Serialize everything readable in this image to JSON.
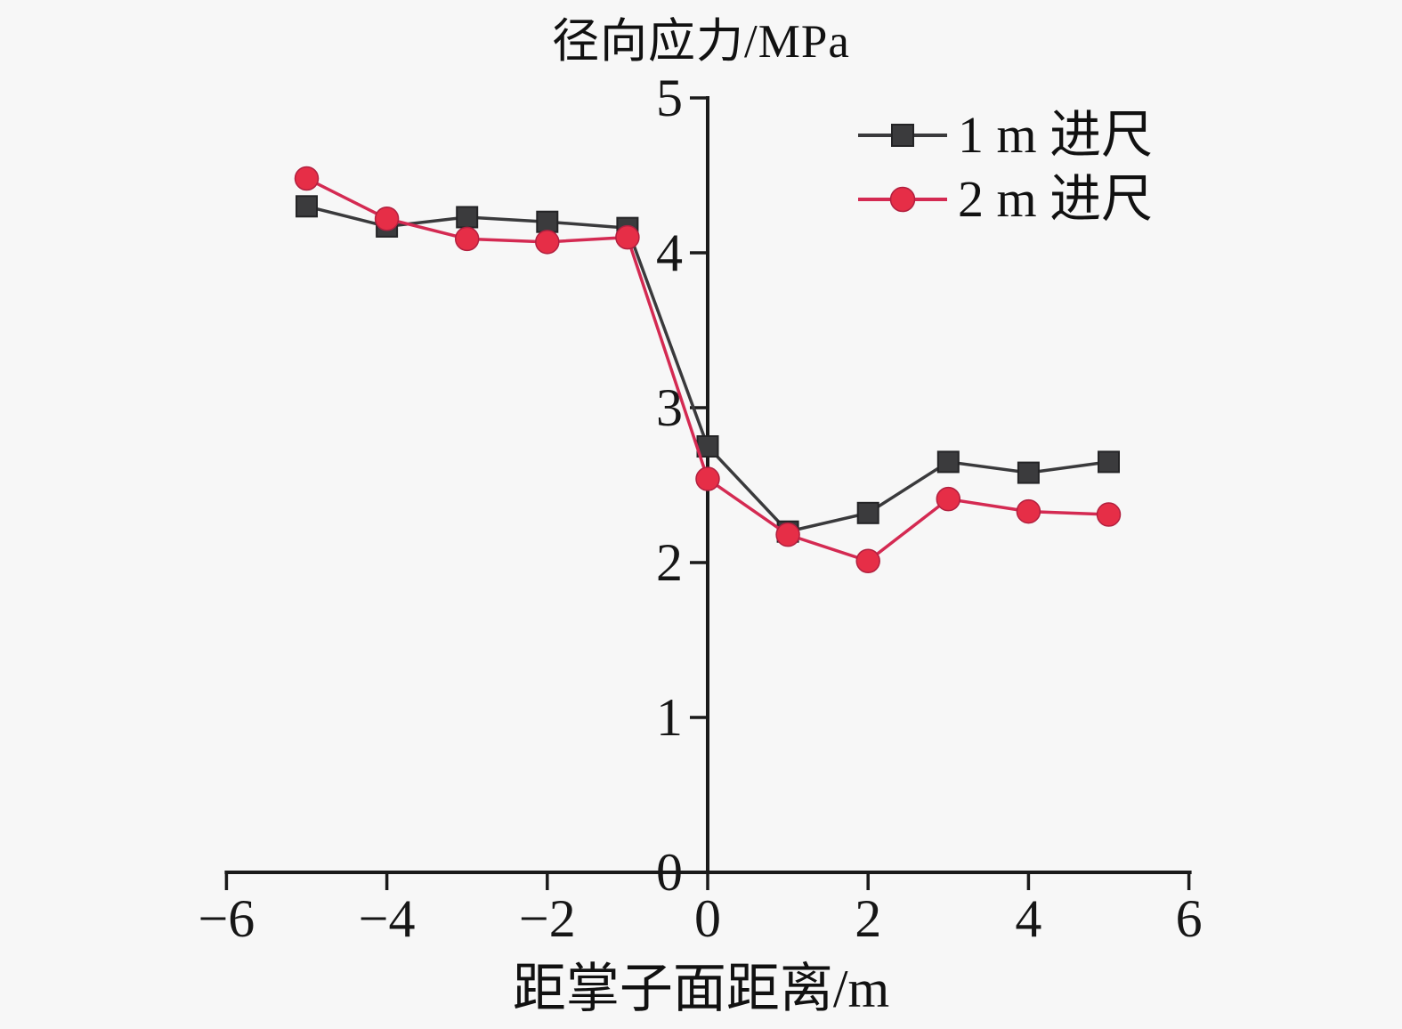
{
  "chart_data": {
    "type": "line",
    "title": "径向应力/MPa",
    "xlabel": "距掌子面距离/m",
    "ylabel": "径向应力/MPa",
    "x": [
      -5,
      -4,
      -3,
      -2,
      -1,
      0,
      1,
      2,
      3,
      4,
      5
    ],
    "series": [
      {
        "name": "1 m 进尺",
        "marker": "square",
        "line_color": "#3a3a3c",
        "marker_color": "#3b3b3d",
        "values": [
          4.3,
          4.17,
          4.23,
          4.2,
          4.16,
          2.75,
          2.2,
          2.32,
          2.65,
          2.58,
          2.65
        ]
      },
      {
        "name": "2 m 进尺",
        "marker": "circle",
        "line_color": "#d42a52",
        "marker_color": "#e62e47",
        "values": [
          4.48,
          4.22,
          4.09,
          4.07,
          4.1,
          2.54,
          2.18,
          2.01,
          2.41,
          2.33,
          2.31
        ]
      }
    ],
    "xlim": [
      -6,
      6
    ],
    "ylim": [
      0,
      5
    ],
    "x_ticks": [
      -6,
      -4,
      -2,
      0,
      2,
      4,
      6
    ],
    "x_tick_labels": [
      "−6",
      "−4",
      "−2",
      "0",
      "2",
      "4",
      "6"
    ],
    "y_ticks": [
      0,
      1,
      2,
      3,
      4,
      5
    ],
    "y_tick_labels": [
      "0",
      "1",
      "2",
      "3",
      "4",
      "5"
    ],
    "grid": false,
    "legend_position": "top-right",
    "axis_color": "#1a1a1a",
    "background_color": "#f7f7f7"
  }
}
